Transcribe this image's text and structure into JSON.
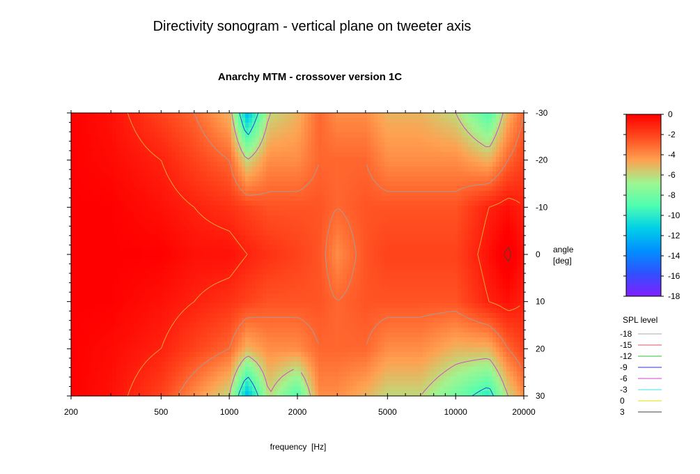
{
  "chart_data": {
    "type": "heatmap",
    "title": "Directivity sonogram - vertical plane on tweeter axis",
    "subtitle": "Anarchy MTM - crossover version 1C",
    "xlabel": "frequency  [Hz]",
    "ylabel": "angle [deg]",
    "ylabel_lines": [
      "angle",
      "[deg]"
    ],
    "x_scale": "log",
    "xlim": [
      200,
      20000
    ],
    "ylim": [
      -30,
      30
    ],
    "x_ticks": [
      200,
      500,
      1000,
      2000,
      5000,
      10000,
      20000
    ],
    "x_tick_labels": [
      "200",
      "500",
      "1000",
      "2000",
      "5000",
      "10000",
      "20000"
    ],
    "y_ticks": [
      -30,
      -20,
      -10,
      0,
      10,
      20,
      30
    ],
    "y_tick_labels": [
      "-30",
      "-20",
      "-10",
      "0",
      "10",
      "20",
      "30"
    ],
    "y_axis_side": "right",
    "colorbar": {
      "range": [
        -18,
        0
      ],
      "ticks": [
        0,
        -2,
        -4,
        -6,
        -8,
        -10,
        -12,
        -14,
        -16,
        -18
      ],
      "tick_labels": [
        "0",
        "-2",
        "-4",
        "-6",
        "-8",
        "-10",
        "-12",
        "-14",
        "-16",
        "-18"
      ],
      "colors": [
        "#ff0000",
        "#ff4a1e",
        "#ffa050",
        "#a0f590",
        "#50ffb0",
        "#00d0e8",
        "#0090ff",
        "#3050ff",
        "#8020ff"
      ]
    },
    "contour_legend": {
      "title": "SPL level",
      "entries": [
        {
          "label": "-18",
          "color": "#aaaaaa"
        },
        {
          "label": "-15",
          "color": "#e05060"
        },
        {
          "label": "-12",
          "color": "#30c030"
        },
        {
          "label": "-9",
          "color": "#3030d0"
        },
        {
          "label": "-6",
          "color": "#d040d0"
        },
        {
          "label": "-3",
          "color": "#40e0e0"
        },
        {
          "label": "0",
          "color": "#e0e000"
        },
        {
          "label": "3",
          "color": "#404040"
        }
      ]
    },
    "surface": {
      "description_levels_db": "SPL relative to on-axis, 0 = on-axis, negative = attenuation",
      "frequencies_hz": [
        200,
        300,
        500,
        700,
        1000,
        1200,
        1500,
        2000,
        2500,
        3000,
        4000,
        5000,
        7000,
        10000,
        14000,
        17000,
        20000
      ],
      "angles_deg": [
        -30,
        -20,
        -10,
        0,
        10,
        20,
        30
      ],
      "spl_db": [
        [
          0,
          -0.5,
          -2,
          -3,
          -5,
          -12,
          -6,
          -5,
          -3,
          -4,
          -4,
          -5,
          -5,
          -6,
          -9,
          -5,
          -3
        ],
        [
          0,
          -0.3,
          -1,
          -2,
          -3,
          -6,
          -4,
          -4,
          -3,
          -3,
          -3,
          -4,
          -4,
          -4,
          -5,
          -3,
          -2
        ],
        [
          0,
          0,
          -0.5,
          -1,
          -1.5,
          -2,
          -2.5,
          -2.5,
          -2.5,
          -3,
          -2.5,
          -2.5,
          -2.5,
          -2.5,
          -1,
          -0.5,
          -1
        ],
        [
          0,
          0,
          0,
          -0.5,
          -0.5,
          -1,
          -1.5,
          -2,
          -2.5,
          -4,
          -2.5,
          -2,
          -2,
          -2,
          -0.5,
          0.5,
          -0.5
        ],
        [
          0,
          0,
          -0.5,
          -1,
          -1.5,
          -2,
          -2.5,
          -2.5,
          -2.5,
          -3,
          -2.5,
          -2.5,
          -2.5,
          -2.5,
          -1,
          -0.5,
          -1
        ],
        [
          0,
          -0.3,
          -1,
          -2,
          -3,
          -5,
          -4,
          -4,
          -3,
          -3,
          -3,
          -4,
          -4,
          -5,
          -5,
          -3,
          -2
        ],
        [
          0,
          -0.5,
          -2,
          -4,
          -6,
          -12,
          -6,
          -9,
          -4,
          -4,
          -5,
          -6,
          -6,
          -8,
          -10,
          -6,
          -4
        ]
      ]
    }
  }
}
